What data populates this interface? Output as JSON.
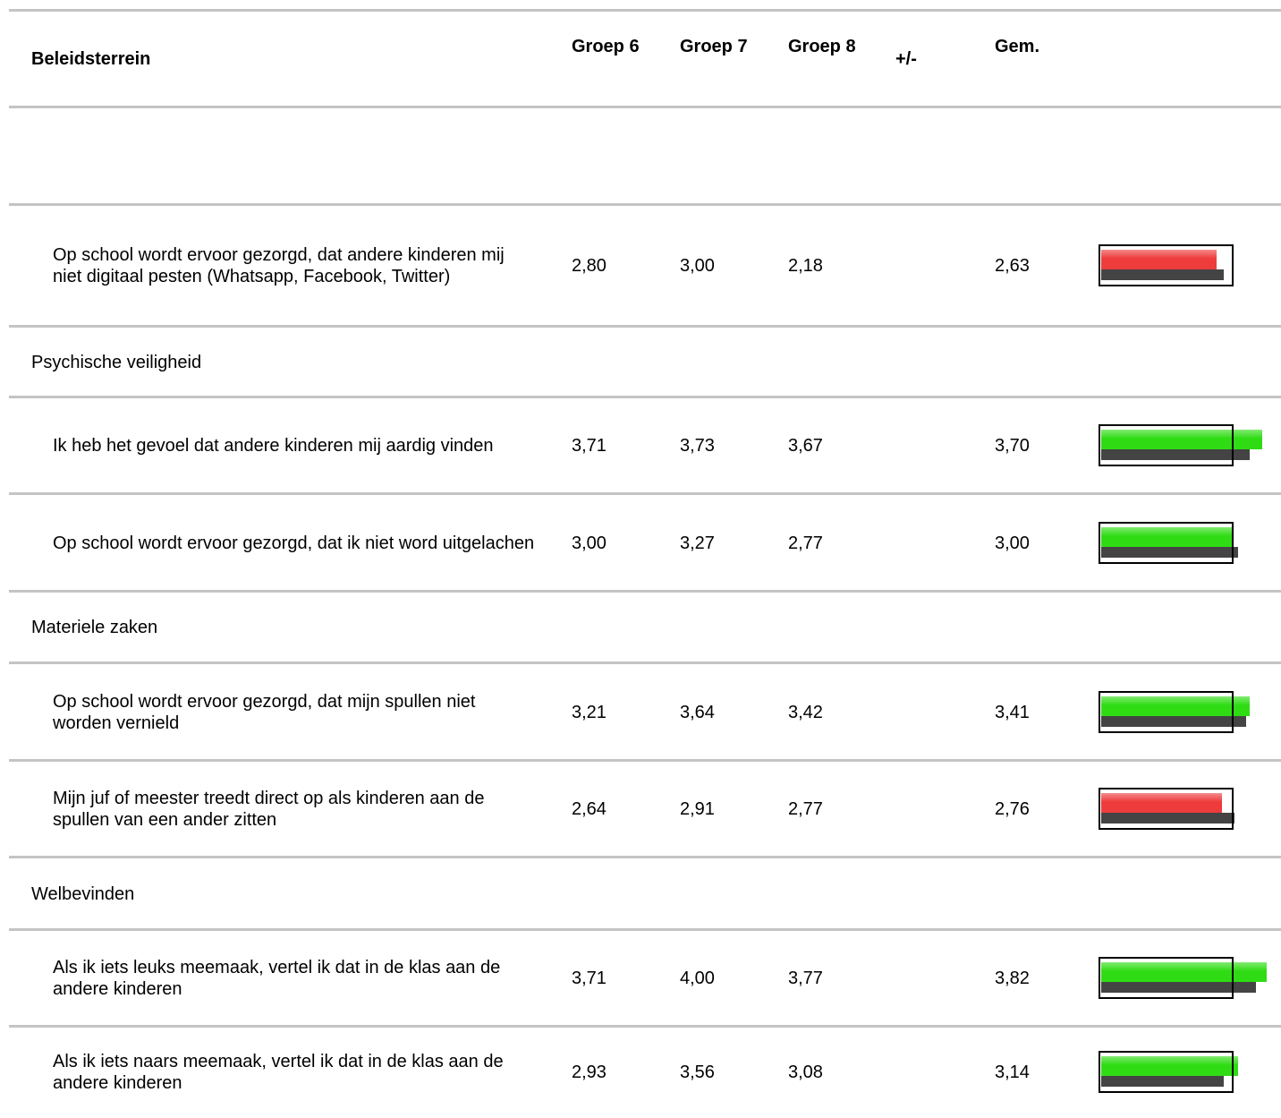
{
  "header": {
    "label": "Beleidsterrein",
    "columns": [
      "Groep 6",
      "Groep 7",
      "Groep 8",
      "+/-",
      "Gem."
    ]
  },
  "rows": [
    {
      "label": "Op school wordt ervoor gezorgd, dat andere kinderen mij niet digitaal pesten (Whatsapp, Facebook, Twitter)",
      "groups": [
        "2,80",
        "3,00",
        "2,18"
      ],
      "gem": 2.63,
      "gem_label": "2,63",
      "benchmark": 2.81,
      "color": "#ee3b3b"
    },
    {
      "section": "Psychische veiligheid"
    },
    {
      "label": "Ik heb het gevoel dat andere kinderen mij aardig vinden",
      "groups": [
        "3,71",
        "3,73",
        "3,67"
      ],
      "gem": 3.7,
      "gem_label": "3,70",
      "benchmark": 3.42,
      "color": "#2fdc14"
    },
    {
      "label": "Op school wordt ervoor gezorgd, dat ik niet word uitgelachen",
      "groups": [
        "3,00",
        "3,27",
        "2,77"
      ],
      "gem": 3.0,
      "gem_label": "3,00",
      "benchmark": 3.13,
      "color": "#2fdc14"
    },
    {
      "section": "Materiele zaken"
    },
    {
      "label": "Op school wordt ervoor gezorgd, dat mijn spullen niet worden vernield",
      "groups": [
        "3,21",
        "3,64",
        "3,42"
      ],
      "gem": 3.41,
      "gem_label": "3,41",
      "benchmark": 3.32,
      "color": "#2fdc14"
    },
    {
      "label": "Mijn juf of meester treedt direct op als kinderen aan de spullen van een ander zitten",
      "groups": [
        "2,64",
        "2,91",
        "2,77"
      ],
      "gem": 2.76,
      "gem_label": "2,76",
      "benchmark": 3.06,
      "color": "#ee3b3b"
    },
    {
      "section": "Welbevinden"
    },
    {
      "label": "Als ik iets leuks meemaak, vertel ik dat in de klas aan de andere kinderen",
      "groups": [
        "3,71",
        "4,00",
        "3,77"
      ],
      "gem": 3.82,
      "gem_label": "3,82",
      "benchmark": 3.55,
      "color": "#2fdc14"
    },
    {
      "label": "Als ik iets naars meemaak, vertel ik dat in de klas aan de andere kinderen",
      "groups": [
        "2,93",
        "3,56",
        "3,08"
      ],
      "gem": 3.14,
      "gem_label": "3,14",
      "benchmark": 2.79,
      "color": "#2fdc14"
    }
  ]
}
